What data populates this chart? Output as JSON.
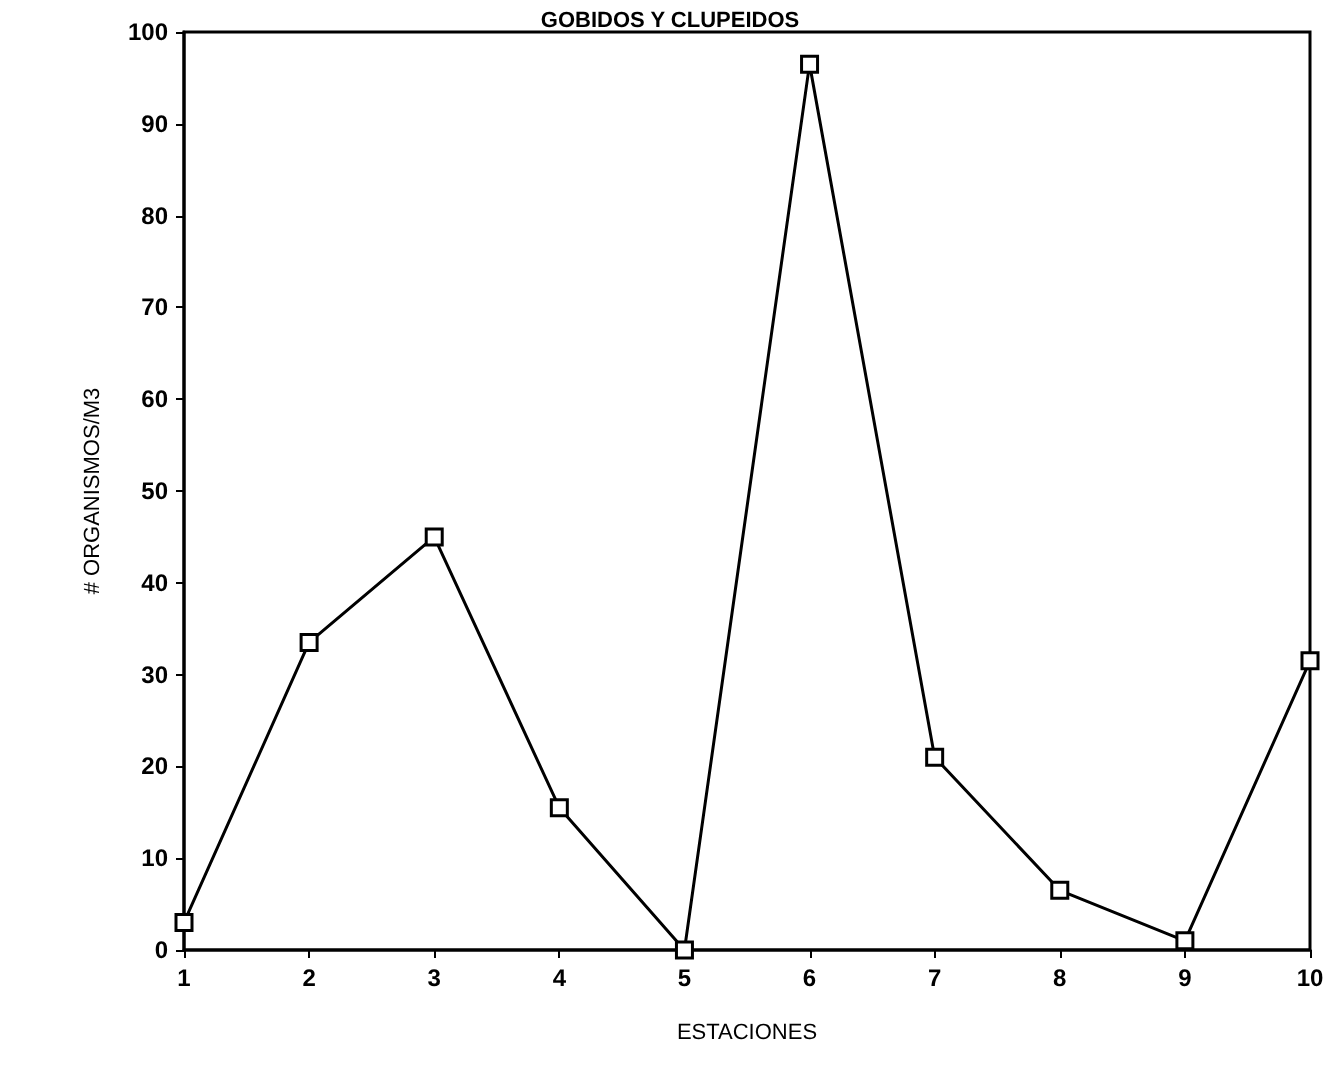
{
  "chart_data": {
    "type": "line",
    "title": "GOBIDOS Y CLUPEIDOS",
    "xlabel": "ESTACIONES",
    "ylabel": "# ORGANISMOS/M3",
    "x": [
      1,
      2,
      3,
      4,
      5,
      6,
      7,
      8,
      9,
      10
    ],
    "values": [
      3,
      33.5,
      45,
      15.5,
      0,
      96.5,
      21,
      6.5,
      1,
      31.5
    ],
    "color": "#000000",
    "marker": "square",
    "line_style": "solid",
    "xlim": [
      1,
      10
    ],
    "xticks": [
      1,
      2,
      3,
      4,
      5,
      6,
      7,
      8,
      9,
      10
    ],
    "ylim": [
      0,
      100
    ],
    "yticks": [
      0,
      10,
      20,
      30,
      40,
      50,
      60,
      70,
      80,
      90,
      100
    ],
    "grid": false
  }
}
